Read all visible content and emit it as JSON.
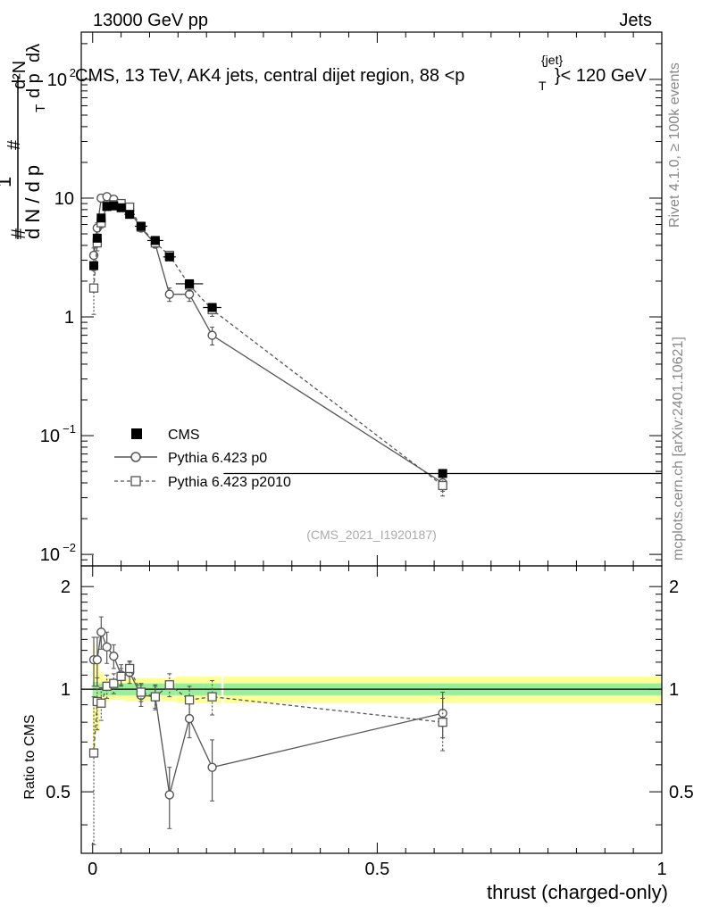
{
  "header": {
    "energy_label": "13000 GeV pp",
    "category_label": "Jets"
  },
  "side_labels": {
    "rivet": "Rivet 4.1.0, ≥ 100k events",
    "mcplots": "mcplots.cern.ch [arXiv:2401.10621]"
  },
  "watermark": "(CMS_2021_I1920187)",
  "title": {
    "main": "CMS, 13 TeV, AK4 jets, central dijet region, 88 <p",
    "sub": "T",
    "sup": "{jet}",
    "tail": "}< 120 GeV"
  },
  "ylabel_top": {
    "frac_num": "1",
    "frac_den": "d N / d p",
    "hash1": "#",
    "hash2": "#",
    "d2n": "d²N",
    "dpt": "d p",
    "dlambda": "dλ",
    "sub_t": "T"
  },
  "ylabel_ratio": "Ratio to CMS",
  "xlabel": "thrust (charged-only)",
  "legend": [
    {
      "label": "CMS",
      "style": "data"
    },
    {
      "label": "Pythia 6.423 p0",
      "style": "circle"
    },
    {
      "label": "Pythia 6.423 p2010",
      "style": "square"
    }
  ],
  "chart_data": {
    "type": "scatter",
    "title": "CMS, 13 TeV, AK4 jets, central dijet region, 88 < pT{jet} < 120 GeV",
    "xlabel": "thrust (charged-only)",
    "ylabel": "1/(dN/dpT) d2N/(dpT dlambda)",
    "xlim": [
      -0.02,
      1.0
    ],
    "ylim_main": [
      0.008,
      250
    ],
    "ylim_ratio": [
      0.33,
      2.3
    ],
    "yscale_main": "log",
    "yscale_ratio": "log",
    "x_ticks": [
      {
        "v": 0,
        "label": "0"
      },
      {
        "v": 0.5,
        "label": "0.5"
      },
      {
        "v": 1,
        "label": "1"
      }
    ],
    "y_ticks_main": [
      {
        "v": 100,
        "label": "10",
        "exp": "2"
      },
      {
        "v": 10,
        "label": "10",
        "exp": ""
      },
      {
        "v": 1,
        "label": "1",
        "exp": ""
      },
      {
        "v": 0.1,
        "label": "10",
        "exp": "−1"
      },
      {
        "v": 0.01,
        "label": "10",
        "exp": "−2"
      }
    ],
    "y_ticks_ratio": [
      {
        "v": 2,
        "label": "2"
      },
      {
        "v": 1,
        "label": "1"
      },
      {
        "v": 0.5,
        "label": "0.5"
      }
    ],
    "series": [
      {
        "name": "CMS",
        "x": [
          0.002,
          0.008,
          0.015,
          0.025,
          0.037,
          0.05,
          0.065,
          0.085,
          0.11,
          0.135,
          0.17,
          0.21,
          0.615
        ],
        "xerr": [
          0.002,
          0.004,
          0.005,
          0.005,
          0.007,
          0.008,
          0.009,
          0.011,
          0.014,
          0.011,
          0.024,
          0.016,
          0.385
        ],
        "y": [
          2.7,
          4.6,
          6.8,
          8.5,
          8.6,
          8.3,
          7.3,
          5.8,
          4.4,
          3.2,
          1.9,
          1.2,
          0.048
        ],
        "ratio_band_inner": [
          0.05,
          0.05,
          0.04,
          0.04,
          0.04,
          0.04,
          0.04,
          0.04,
          0.04,
          0.04,
          0.04,
          0.04,
          0.04
        ],
        "ratio_band_outer": [
          0.35,
          0.25,
          0.12,
          0.08,
          0.07,
          0.07,
          0.08,
          0.08,
          0.08,
          0.08,
          0.09,
          0.09,
          0.09
        ]
      },
      {
        "name": "Pythia 6.423 p0",
        "x": [
          0.002,
          0.008,
          0.015,
          0.025,
          0.037,
          0.05,
          0.065,
          0.085,
          0.11,
          0.135,
          0.17,
          0.21,
          0.615
        ],
        "y": [
          3.3,
          5.6,
          10.0,
          10.3,
          9.8,
          8.9,
          7.8,
          5.6,
          4.1,
          1.55,
          1.55,
          0.7,
          0.04
        ],
        "yerr": [
          0.5,
          0.6,
          0.7,
          0.6,
          0.5,
          0.4,
          0.4,
          0.3,
          0.3,
          0.2,
          0.2,
          0.12,
          0.006
        ],
        "ratio": [
          1.22,
          1.22,
          1.47,
          1.33,
          1.25,
          1.1,
          1.12,
          0.96,
          0.95,
          0.49,
          0.82,
          0.59,
          0.85
        ],
        "ratio_err": [
          0.2,
          0.2,
          0.16,
          0.14,
          0.1,
          0.08,
          0.08,
          0.07,
          0.08,
          0.1,
          0.1,
          0.12,
          0.13
        ]
      },
      {
        "name": "Pythia 6.423 p2010",
        "x": [
          0.002,
          0.008,
          0.015,
          0.025,
          0.037,
          0.05,
          0.065,
          0.085,
          0.11,
          0.135,
          0.17,
          0.21,
          0.615
        ],
        "y": [
          1.75,
          4.2,
          6.2,
          8.6,
          8.8,
          9.0,
          8.4,
          5.7,
          4.2,
          3.3,
          1.85,
          1.15,
          0.038
        ],
        "yerr": [
          0.7,
          0.6,
          0.6,
          0.5,
          0.5,
          0.4,
          0.4,
          0.3,
          0.3,
          0.25,
          0.2,
          0.14,
          0.007
        ],
        "ratio": [
          0.65,
          0.92,
          0.91,
          1.02,
          1.04,
          1.09,
          1.15,
          0.98,
          0.95,
          1.03,
          0.93,
          0.95,
          0.8
        ],
        "ratio_err": [
          0.3,
          0.16,
          0.1,
          0.08,
          0.07,
          0.06,
          0.06,
          0.06,
          0.07,
          0.08,
          0.09,
          0.11,
          0.14
        ]
      }
    ]
  }
}
